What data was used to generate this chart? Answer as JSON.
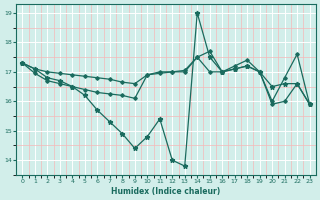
{
  "xlabel": "Humidex (Indice chaleur)",
  "bg_color": "#d2eeea",
  "line_color": "#1a6b5e",
  "grid_major_color": "#ffffff",
  "grid_minor_color": "#f5b8b8",
  "xlim": [
    -0.5,
    23.5
  ],
  "ylim": [
    13.5,
    19.3
  ],
  "yticks": [
    14,
    15,
    16,
    17,
    18,
    19
  ],
  "xticks": [
    0,
    1,
    2,
    3,
    4,
    5,
    6,
    7,
    8,
    9,
    10,
    11,
    12,
    13,
    14,
    15,
    16,
    17,
    18,
    19,
    20,
    21,
    22,
    23
  ],
  "line1_x": [
    0,
    1,
    2,
    3,
    4,
    5,
    6,
    7,
    8,
    9,
    10,
    11,
    12,
    13,
    14,
    15,
    16,
    17,
    18,
    19,
    20,
    21,
    22,
    23
  ],
  "line1_y": [
    17.3,
    17.1,
    17.0,
    16.95,
    16.9,
    16.85,
    16.8,
    16.75,
    16.65,
    16.6,
    16.9,
    17.0,
    17.0,
    17.05,
    17.5,
    17.7,
    17.0,
    17.2,
    17.4,
    17.0,
    16.0,
    16.8,
    17.6,
    15.9
  ],
  "line2_x": [
    0,
    1,
    2,
    3,
    4,
    5,
    6,
    7,
    8,
    9,
    10,
    11,
    12,
    13,
    14,
    15,
    16,
    17,
    18,
    19,
    20,
    21,
    22,
    23
  ],
  "line2_y": [
    17.3,
    17.1,
    16.8,
    16.7,
    16.5,
    16.2,
    15.7,
    15.3,
    14.9,
    14.4,
    14.8,
    15.4,
    14.0,
    13.8,
    19.0,
    17.5,
    17.0,
    17.1,
    17.2,
    17.0,
    16.5,
    16.6,
    16.6,
    15.9
  ],
  "line3_x": [
    0,
    1,
    2,
    3,
    4,
    5,
    6,
    7,
    8,
    9,
    10,
    11,
    12,
    13,
    14,
    15,
    16,
    17,
    18,
    19,
    20,
    21,
    22,
    23
  ],
  "line3_y": [
    17.3,
    16.95,
    16.7,
    16.6,
    16.5,
    16.4,
    16.3,
    16.25,
    16.2,
    16.1,
    16.9,
    16.95,
    17.0,
    17.0,
    17.5,
    17.0,
    17.0,
    17.1,
    17.2,
    17.0,
    15.9,
    16.0,
    16.6,
    15.9
  ]
}
